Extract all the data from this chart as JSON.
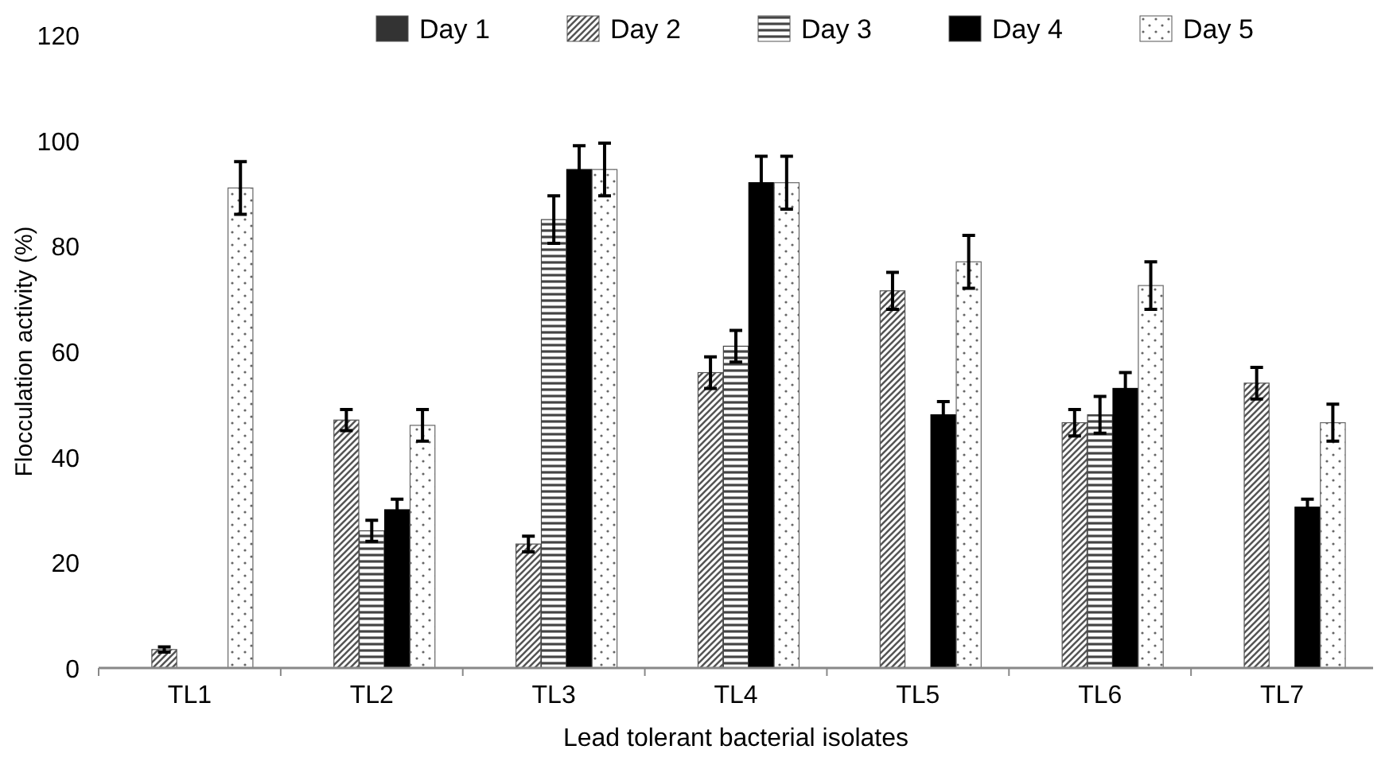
{
  "chart_data": {
    "type": "bar",
    "xlabel": "Lead tolerant bacterial isolates",
    "ylabel": "Flocculation activity (%)",
    "categories": [
      "TL1",
      "TL2",
      "TL3",
      "TL4",
      "TL5",
      "TL6",
      "TL7"
    ],
    "series": [
      {
        "name": "Day 1",
        "color": "#333333",
        "values": [
          null,
          null,
          null,
          null,
          null,
          null,
          null
        ]
      },
      {
        "name": "Day 2",
        "color": "#555555",
        "values": [
          3.5,
          47,
          23.5,
          56,
          71.5,
          46.5,
          54
        ],
        "errors": [
          0.5,
          2,
          1.5,
          3,
          3.5,
          2.5,
          3
        ]
      },
      {
        "name": "Day 3",
        "color": "#444444",
        "values": [
          null,
          26,
          85,
          61,
          null,
          48,
          null
        ],
        "errors": [
          null,
          2,
          4.5,
          3,
          null,
          3.5,
          null
        ]
      },
      {
        "name": "Day 4",
        "color": "#000000",
        "values": [
          null,
          30,
          94.5,
          92,
          48,
          53,
          30.5
        ],
        "errors": [
          null,
          2,
          4.5,
          5,
          2.5,
          3,
          1.5
        ]
      },
      {
        "name": "Day 5",
        "color": "#666666",
        "values": [
          91,
          46,
          94.5,
          92,
          77,
          72.5,
          46.5
        ],
        "errors": [
          5,
          3,
          5,
          5,
          5,
          4.5,
          3.5
        ]
      }
    ],
    "ylim": [
      0,
      120
    ],
    "yticks": [
      0,
      20,
      40,
      60,
      80,
      100,
      120
    ],
    "legend": "top",
    "grid": false
  }
}
